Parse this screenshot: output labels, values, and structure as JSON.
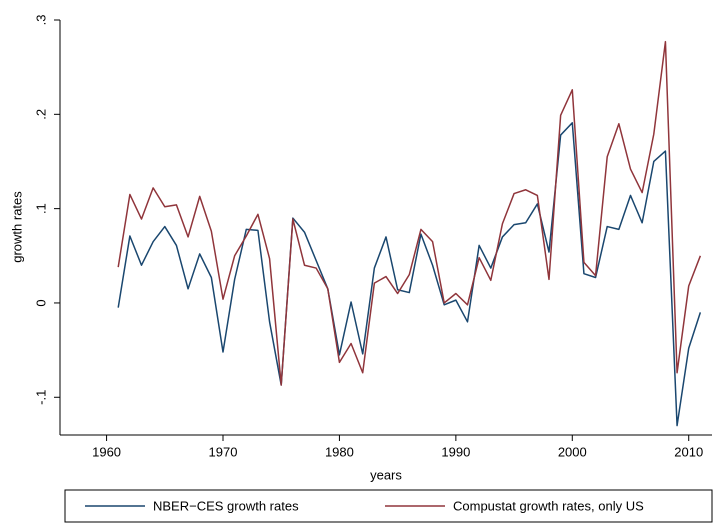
{
  "chart_data": {
    "type": "line",
    "x_label": "years",
    "y_label": "growth rates",
    "x": [
      1961,
      1962,
      1963,
      1964,
      1965,
      1966,
      1967,
      1968,
      1969,
      1970,
      1971,
      1972,
      1973,
      1974,
      1975,
      1976,
      1977,
      1978,
      1979,
      1980,
      1981,
      1982,
      1983,
      1984,
      1985,
      1986,
      1987,
      1988,
      1989,
      1990,
      1991,
      1992,
      1993,
      1994,
      1995,
      1996,
      1997,
      1998,
      1999,
      2000,
      2001,
      2002,
      2003,
      2004,
      2005,
      2006,
      2007,
      2008,
      2009,
      2010,
      2011
    ],
    "series": [
      {
        "name": "NBER−CES growth rates",
        "color": "#1a476f",
        "values": [
          -0.005,
          0.071,
          0.04,
          0.065,
          0.081,
          0.061,
          0.015,
          0.052,
          0.027,
          -0.052,
          0.025,
          0.078,
          0.077,
          -0.02,
          -0.087,
          0.09,
          0.075,
          0.045,
          0.015,
          -0.055,
          0.001,
          -0.054,
          0.037,
          0.07,
          0.014,
          0.011,
          0.073,
          0.04,
          -0.002,
          0.003,
          -0.02,
          0.061,
          0.037,
          0.07,
          0.083,
          0.085,
          0.105,
          0.054,
          0.178,
          0.191,
          0.031,
          0.027,
          0.081,
          0.078,
          0.114,
          0.085,
          0.15,
          0.161,
          -0.13,
          -0.048,
          -0.01
        ]
      },
      {
        "name": "Compustat growth rates, only US",
        "color": "#90353b",
        "values": [
          0.038,
          0.115,
          0.089,
          0.122,
          0.102,
          0.104,
          0.07,
          0.113,
          0.076,
          0.004,
          0.05,
          0.071,
          0.094,
          0.047,
          -0.087,
          0.089,
          0.04,
          0.037,
          0.015,
          -0.063,
          -0.043,
          -0.074,
          0.021,
          0.028,
          0.01,
          0.03,
          0.078,
          0.065,
          0.0,
          0.01,
          -0.002,
          0.048,
          0.024,
          0.084,
          0.116,
          0.12,
          0.114,
          0.025,
          0.199,
          0.226,
          0.043,
          0.029,
          0.155,
          0.19,
          0.142,
          0.117,
          0.179,
          0.277,
          -0.074,
          0.018,
          0.05
        ]
      }
    ],
    "xlim": [
      1956,
      2012
    ],
    "xticks": [
      1960,
      1970,
      1980,
      1990,
      2000,
      2010
    ],
    "ylim": [
      -0.14,
      0.3
    ],
    "yticks": [
      {
        "value": -0.1,
        "label": "-.1"
      },
      0,
      {
        "value": 0.1,
        "label": ".1"
      },
      {
        "value": 0.2,
        "label": ".2"
      },
      {
        "value": 0.3,
        "label": ".3"
      }
    ],
    "grid": false,
    "legend": "bottom"
  }
}
